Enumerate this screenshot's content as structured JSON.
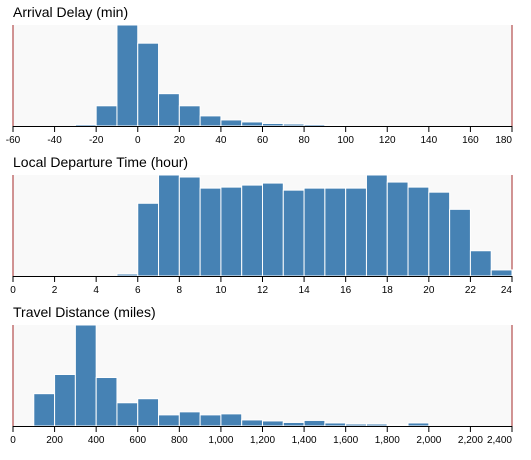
{
  "colors": {
    "bar": "#4682b4",
    "plot_background": "#f9f9f9",
    "brush_edge": "#a52a2a"
  },
  "chart_data": [
    {
      "type": "bar",
      "title": "Arrival Delay (min)",
      "bin_width": 10,
      "bins": [
        -30,
        -20,
        -10,
        0,
        10,
        20,
        30,
        40,
        50,
        60,
        70,
        80,
        90
      ],
      "values": [
        1.5,
        20,
        100,
        82,
        32,
        20,
        10,
        6,
        4,
        2.5,
        2,
        1.5,
        1
      ],
      "xlim": [
        -60,
        180
      ],
      "ticks": [
        -60,
        -40,
        -20,
        0,
        20,
        40,
        60,
        80,
        100,
        120,
        140,
        160,
        180
      ],
      "tick_labels": [
        "-60",
        "-40",
        "-20",
        "0",
        "20",
        "40",
        "60",
        "80",
        "100",
        "120",
        "140",
        "160",
        "180"
      ],
      "ylim": [
        0,
        100
      ],
      "grid": false
    },
    {
      "type": "bar",
      "title": "Local Departure Time (hour)",
      "bin_width": 1,
      "bins": [
        5,
        6,
        7,
        8,
        9,
        10,
        11,
        12,
        13,
        14,
        15,
        16,
        17,
        18,
        19,
        20,
        21,
        22,
        23
      ],
      "values": [
        2,
        72,
        100,
        98,
        87,
        88,
        90,
        92,
        85,
        87,
        87,
        87,
        100,
        93,
        88,
        83,
        66,
        25,
        6
      ],
      "xlim": [
        0,
        24
      ],
      "ticks": [
        0,
        2,
        4,
        6,
        8,
        10,
        12,
        14,
        16,
        18,
        20,
        22,
        24
      ],
      "tick_labels": [
        "0",
        "2",
        "4",
        "6",
        "8",
        "10",
        "12",
        "14",
        "16",
        "18",
        "20",
        "22",
        "24"
      ],
      "ylim": [
        0,
        100
      ],
      "grid": false
    },
    {
      "type": "bar",
      "title": "Travel Distance (miles)",
      "bin_width": 100,
      "bins": [
        100,
        200,
        300,
        400,
        500,
        600,
        700,
        800,
        900,
        1000,
        1100,
        1200,
        1300,
        1400,
        1500,
        1600,
        1700,
        1800,
        1900
      ],
      "values": [
        32,
        51,
        100,
        48,
        23,
        27,
        11,
        14,
        11,
        12,
        6,
        5,
        3.5,
        5.5,
        3,
        2,
        2,
        1,
        3
      ],
      "xlim": [
        0,
        2400
      ],
      "ticks": [
        0,
        200,
        400,
        600,
        800,
        1000,
        1200,
        1400,
        1600,
        1800,
        2000,
        2200,
        2400
      ],
      "tick_labels": [
        "0",
        "200",
        "400",
        "600",
        "800",
        "1,000",
        "1,200",
        "1,400",
        "1,600",
        "1,800",
        "2,000",
        "2,200",
        "2,400"
      ],
      "ylim": [
        0,
        100
      ],
      "grid": false
    }
  ]
}
